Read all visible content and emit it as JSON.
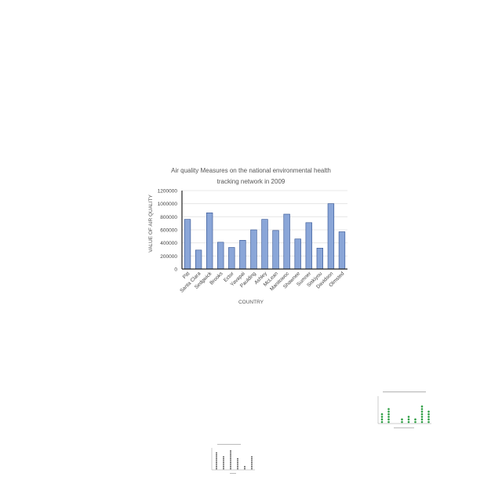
{
  "chart_data": [
    {
      "type": "bar",
      "title_lines": [
        "Air quality Measures on the national environmental health",
        "tracking network in 2009"
      ],
      "xlabel": "COUNTRY",
      "ylabel": "VALUE OF  AIR QUALITY",
      "ylim": [
        0,
        1200000
      ],
      "yticks": [
        "0",
        "200000",
        "400000",
        "600000",
        "800000",
        "1000000",
        "1200000"
      ],
      "grid": true,
      "bar_color": "#8aa6d8",
      "bar_stroke": "#2e4f8f",
      "categories": [
        "Pitt",
        "Santa Clara",
        "Sedgwick",
        "Brooks",
        "Ector",
        "Yavapai",
        "Paulding",
        "Ashley",
        "McLean",
        "Manitowoc",
        "Shawnee",
        "Sumner",
        "Siskiyou",
        "Davidson",
        "Olmsted"
      ],
      "values": [
        760000,
        290000,
        860000,
        410000,
        330000,
        440000,
        600000,
        760000,
        590000,
        840000,
        460000,
        710000,
        320000,
        1000000,
        570000
      ]
    },
    {
      "type": "scatter",
      "marker_color": "#2e9e44",
      "columns": [
        4,
        6,
        0,
        2,
        3,
        2,
        7,
        5
      ],
      "note": "thumbnail dot-column chart, text not legible"
    },
    {
      "type": "scatter",
      "marker_color": "#555555",
      "columns": [
        9,
        7,
        10,
        6,
        2,
        7
      ],
      "note": "thumbnail dot-column chart, text not legible"
    }
  ]
}
